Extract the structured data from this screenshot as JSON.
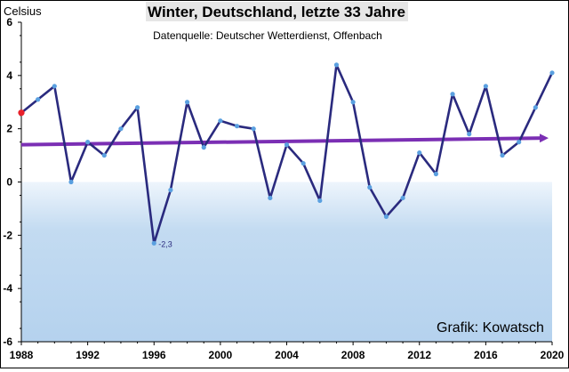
{
  "chart_data": {
    "type": "line",
    "title": "Winter, Deutschland,  letzte 33 Jahre",
    "subtitle": "Datenquelle: Deutscher Wetterdienst, Offenbach",
    "ylabel": "Celsius",
    "credit": "Grafik: Kowatsch",
    "ylim": [
      -6,
      6
    ],
    "xlim": [
      1988,
      2020
    ],
    "y_ticks": [
      "6",
      "4",
      "2",
      "0",
      "-2",
      "-4",
      "-6"
    ],
    "x_ticks": [
      "1988",
      "1992",
      "1996",
      "2000",
      "2004",
      "2008",
      "2012",
      "2016",
      "2020"
    ],
    "x": [
      1988,
      1989,
      1990,
      1991,
      1992,
      1993,
      1994,
      1995,
      1996,
      1997,
      1998,
      1999,
      2000,
      2001,
      2002,
      2003,
      2004,
      2005,
      2006,
      2007,
      2008,
      2009,
      2010,
      2011,
      2012,
      2013,
      2014,
      2015,
      2016,
      2017,
      2018,
      2019,
      2020
    ],
    "series": [
      {
        "values": [
          2.6,
          3.1,
          3.6,
          0.0,
          1.5,
          1.0,
          2.0,
          2.8,
          -2.3,
          -0.3,
          3.0,
          1.3,
          2.3,
          2.1,
          2.0,
          -0.6,
          1.4,
          0.7,
          -0.7,
          4.4,
          3.0,
          -0.2,
          -1.3,
          -0.6,
          1.1,
          0.3,
          3.3,
          1.8,
          3.6,
          1.0,
          1.5,
          2.8,
          4.1
        ],
        "color": "#2a2a7e"
      }
    ],
    "trend": {
      "from": [
        1988,
        1.4
      ],
      "to": [
        2020,
        1.65
      ],
      "color": "#7b2fb4"
    },
    "annotations": [
      {
        "x": 1996,
        "y": -2.3,
        "text": "-2,3"
      }
    ],
    "first_point_color": "#e8202a",
    "point_color": "#5aa0e0",
    "grid": false
  }
}
